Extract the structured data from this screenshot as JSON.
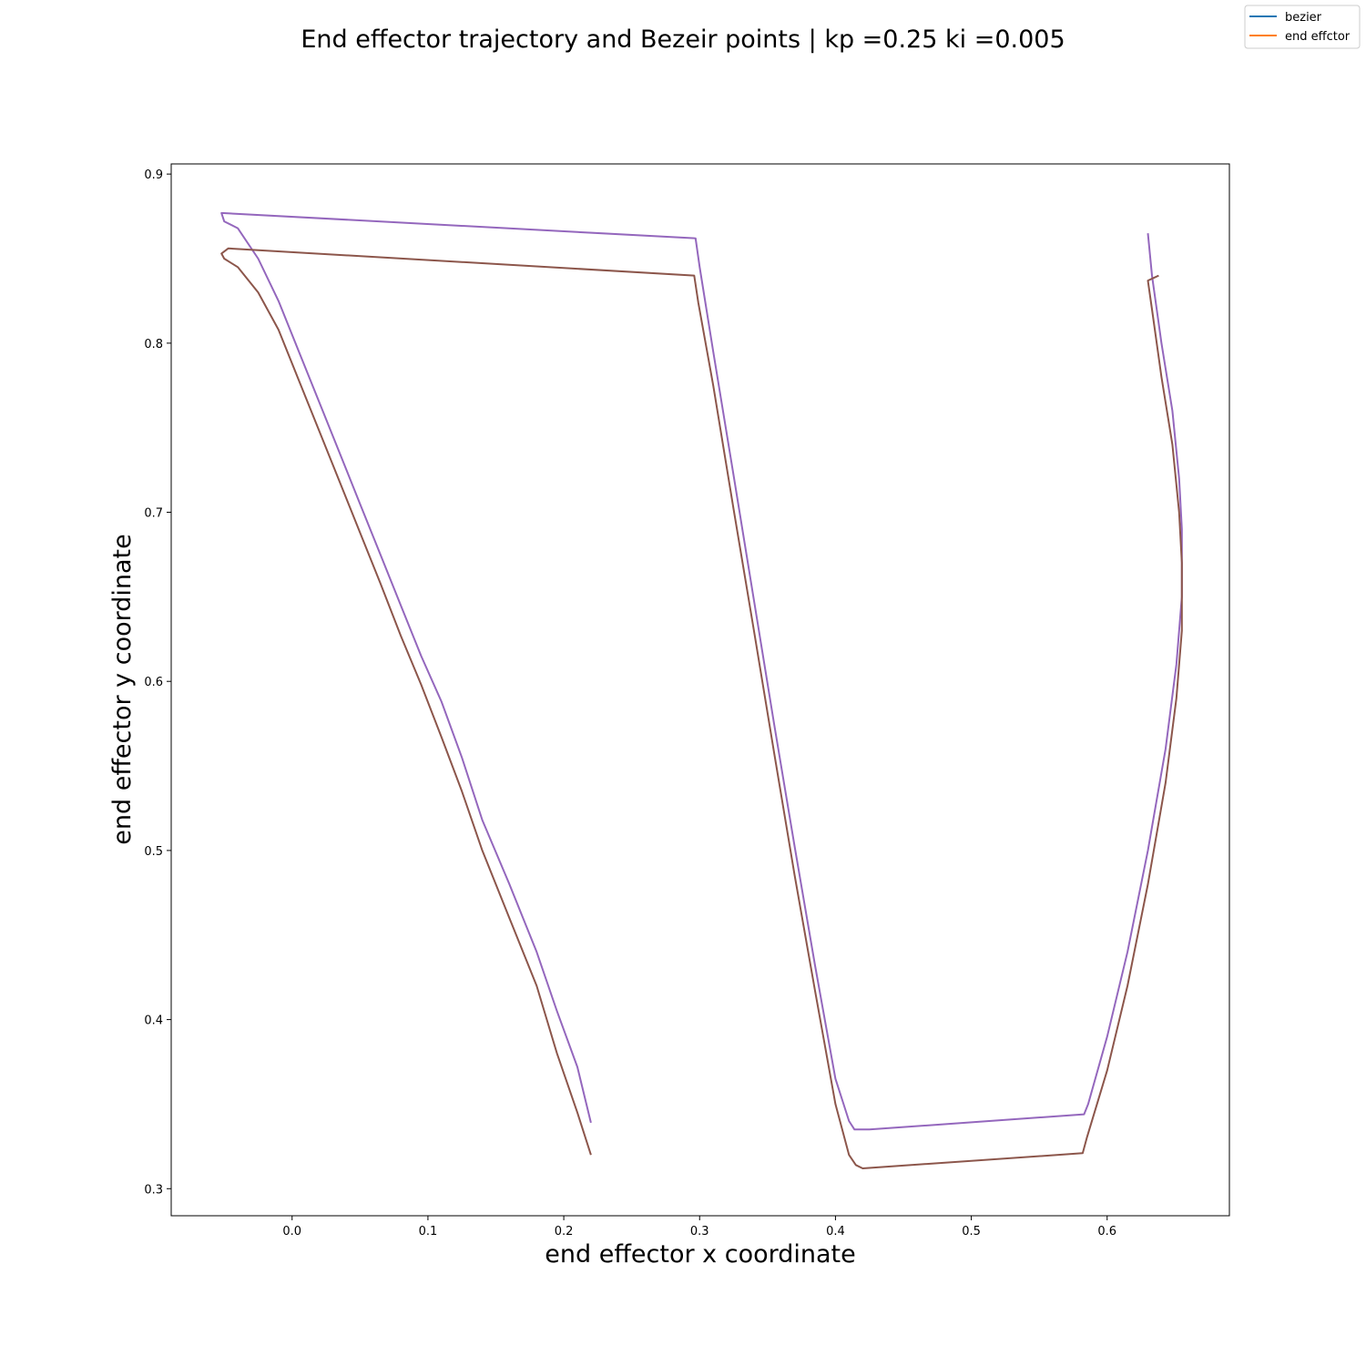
{
  "chart_data": {
    "type": "line",
    "title": "End effector trajectory and Bezeir points | kp =0.25 ki =0.005",
    "xlabel": "end effector x coordinate",
    "ylabel": "end effector y coordinate",
    "xlim": [
      -0.089,
      0.69
    ],
    "ylim": [
      0.284,
      0.906
    ],
    "xticks": [
      0.0,
      0.1,
      0.2,
      0.3,
      0.4,
      0.5,
      0.6
    ],
    "xtick_labels": [
      "0.0",
      "0.1",
      "0.2",
      "0.3",
      "0.4",
      "0.5",
      "0.6"
    ],
    "yticks": [
      0.3,
      0.4,
      0.5,
      0.6,
      0.7,
      0.8,
      0.9
    ],
    "ytick_labels": [
      "0.3",
      "0.4",
      "0.5",
      "0.6",
      "0.7",
      "0.8",
      "0.9"
    ],
    "grid": false,
    "legend": {
      "position": "top-right",
      "entries": [
        {
          "label": "bezier",
          "color": "#1f77b4"
        },
        {
          "label": "end effctor",
          "color": "#ff7f0e"
        }
      ]
    },
    "series": [
      {
        "color": "#9467bd",
        "x": [
          0.22,
          0.21,
          0.195,
          0.18,
          0.16,
          0.14,
          0.125,
          0.11,
          0.095,
          0.08,
          0.065,
          0.05,
          0.035,
          0.02,
          0.005,
          -0.01,
          -0.025,
          -0.04,
          -0.05,
          -0.052,
          -0.052,
          0.297,
          0.3,
          0.31,
          0.325,
          0.34,
          0.355,
          0.37,
          0.385,
          0.4,
          0.41,
          0.414,
          0.425,
          0.583,
          0.586,
          0.6,
          0.615,
          0.63,
          0.643,
          0.651,
          0.655,
          0.655,
          0.653,
          0.648,
          0.64,
          0.633,
          0.63
        ],
        "y": [
          0.339,
          0.372,
          0.405,
          0.44,
          0.48,
          0.518,
          0.555,
          0.588,
          0.615,
          0.645,
          0.675,
          0.705,
          0.735,
          0.765,
          0.795,
          0.825,
          0.85,
          0.868,
          0.872,
          0.877,
          0.877,
          0.862,
          0.845,
          0.795,
          0.722,
          0.648,
          0.574,
          0.502,
          0.432,
          0.365,
          0.34,
          0.335,
          0.335,
          0.344,
          0.35,
          0.39,
          0.44,
          0.5,
          0.56,
          0.61,
          0.65,
          0.69,
          0.72,
          0.76,
          0.8,
          0.84,
          0.865
        ]
      },
      {
        "color": "#8c564b",
        "x": [
          0.22,
          0.21,
          0.195,
          0.18,
          0.16,
          0.14,
          0.125,
          0.11,
          0.095,
          0.08,
          0.065,
          0.05,
          0.035,
          0.02,
          0.005,
          -0.01,
          -0.025,
          -0.04,
          -0.05,
          -0.052,
          -0.047,
          0.296,
          0.299,
          0.31,
          0.325,
          0.34,
          0.355,
          0.37,
          0.385,
          0.4,
          0.41,
          0.415,
          0.42,
          0.582,
          0.585,
          0.6,
          0.615,
          0.63,
          0.643,
          0.651,
          0.655,
          0.655,
          0.653,
          0.648,
          0.64,
          0.633,
          0.63,
          0.638
        ],
        "y": [
          0.32,
          0.345,
          0.38,
          0.42,
          0.46,
          0.5,
          0.535,
          0.567,
          0.598,
          0.627,
          0.658,
          0.688,
          0.718,
          0.748,
          0.778,
          0.808,
          0.83,
          0.845,
          0.85,
          0.853,
          0.856,
          0.84,
          0.824,
          0.775,
          0.702,
          0.63,
          0.557,
          0.485,
          0.417,
          0.35,
          0.32,
          0.314,
          0.312,
          0.321,
          0.33,
          0.37,
          0.42,
          0.48,
          0.54,
          0.59,
          0.63,
          0.67,
          0.7,
          0.74,
          0.78,
          0.82,
          0.837,
          0.84
        ]
      }
    ]
  }
}
